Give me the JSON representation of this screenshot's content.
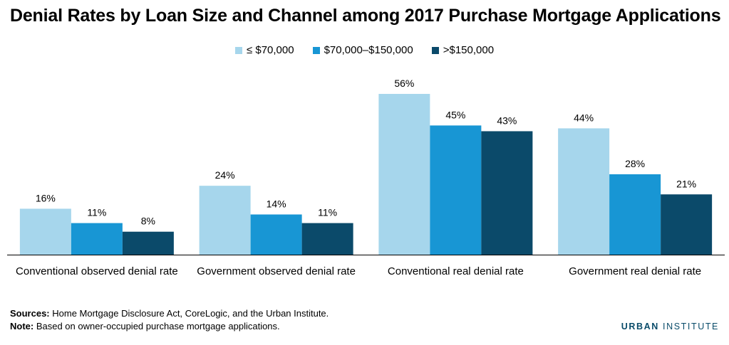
{
  "title": "Denial Rates by Loan Size and Channel among 2017 Purchase Mortgage Applications",
  "chart_data": {
    "type": "bar",
    "categories": [
      "Conventional observed denial rate",
      "Government observed denial rate",
      "Conventional real denial rate",
      "Government real denial rate"
    ],
    "series": [
      {
        "name": "≤ $70,000",
        "color": "#a6d6ec",
        "values": [
          16,
          24,
          56,
          44
        ]
      },
      {
        "name": "$70,000–$150,000",
        "color": "#1896d4",
        "values": [
          11,
          14,
          45,
          28
        ]
      },
      {
        "name": ">$150,000",
        "color": "#0b4a6a",
        "values": [
          8,
          11,
          43,
          21
        ]
      }
    ],
    "value_suffix": "%",
    "ylim": [
      0,
      56
    ],
    "legend_position": "top-center",
    "grid": false
  },
  "footer": {
    "sources_label": "Sources:",
    "sources_text": " Home Mortgage Disclosure Act, CoreLogic, and the Urban Institute.",
    "note_label": "Note:",
    "note_text": " Based on owner-occupied purchase mortgage applications."
  },
  "brand": {
    "part1": "URBAN",
    "part2": "INSTITUTE"
  }
}
